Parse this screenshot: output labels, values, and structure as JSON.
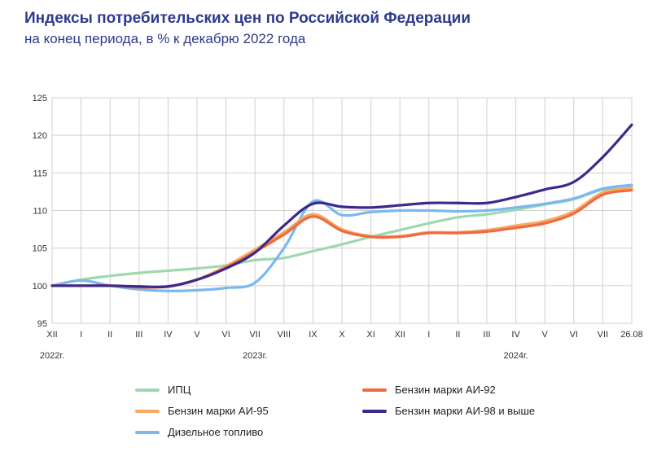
{
  "header": {
    "title": "Индексы потребительских цен по Российской Федерации",
    "subtitle": "на конец периода, в % к декабрю 2022 года"
  },
  "chart_data": {
    "type": "line",
    "title": "Индексы потребительских цен по Российской Федерации",
    "subtitle": "на конец периода, в % к декабрю 2022 года",
    "xlabel": "",
    "ylabel": "",
    "ylim": [
      95,
      125
    ],
    "yticks": [
      "95",
      "100",
      "105",
      "110",
      "115",
      "120",
      "125"
    ],
    "categories": [
      "XII",
      "I",
      "II",
      "III",
      "IV",
      "V",
      "VI",
      "VII",
      "VIII",
      "IX",
      "X",
      "XI",
      "XII",
      "I",
      "II",
      "III",
      "IV",
      "V",
      "VI",
      "VII",
      "26.08"
    ],
    "year_labels": [
      {
        "label": "2022г.",
        "at_index": 0
      },
      {
        "label": "2023г.",
        "at_index": 7
      },
      {
        "label": "2024г.",
        "at_index": 16
      }
    ],
    "grid": true,
    "legend_position": "bottom",
    "series": [
      {
        "name": "ИПЦ",
        "color": "#9fd8b0",
        "values": [
          100.0,
          100.8,
          101.3,
          101.7,
          102.0,
          102.3,
          102.7,
          103.4,
          103.7,
          104.6,
          105.5,
          106.5,
          107.4,
          108.3,
          109.1,
          109.5,
          110.1,
          110.8,
          111.5,
          112.8,
          113.2
        ]
      },
      {
        "name": "Бензин марки АИ-92",
        "color": "#ed6b3e",
        "values": [
          100.0,
          100.0,
          100.0,
          99.8,
          99.9,
          100.8,
          102.4,
          104.5,
          106.8,
          109.2,
          107.3,
          106.5,
          106.5,
          107.0,
          107.0,
          107.2,
          107.7,
          108.3,
          109.6,
          112.1,
          112.7
        ]
      },
      {
        "name": "Бензин марки АИ-95",
        "color": "#f7aa66",
        "values": [
          100.0,
          100.0,
          100.0,
          99.8,
          99.9,
          100.8,
          102.6,
          104.8,
          107.1,
          109.5,
          107.5,
          106.6,
          106.6,
          107.1,
          107.1,
          107.4,
          108.0,
          108.6,
          109.9,
          112.4,
          113.0
        ]
      },
      {
        "name": "Бензин марки АИ-98 и выше",
        "color": "#3b2a8c",
        "values": [
          100.0,
          100.0,
          100.0,
          99.9,
          99.9,
          100.8,
          102.3,
          104.4,
          108.0,
          110.9,
          110.5,
          110.4,
          110.7,
          111.0,
          111.0,
          111.0,
          111.8,
          112.8,
          113.8,
          117.1,
          121.4
        ]
      },
      {
        "name": "Дизельное топливо",
        "color": "#7ab8f0",
        "values": [
          100.0,
          100.7,
          100.0,
          99.5,
          99.3,
          99.4,
          99.7,
          100.4,
          105.0,
          111.2,
          109.4,
          109.8,
          110.0,
          110.0,
          109.9,
          110.0,
          110.4,
          110.9,
          111.6,
          112.9,
          113.4
        ]
      }
    ]
  }
}
